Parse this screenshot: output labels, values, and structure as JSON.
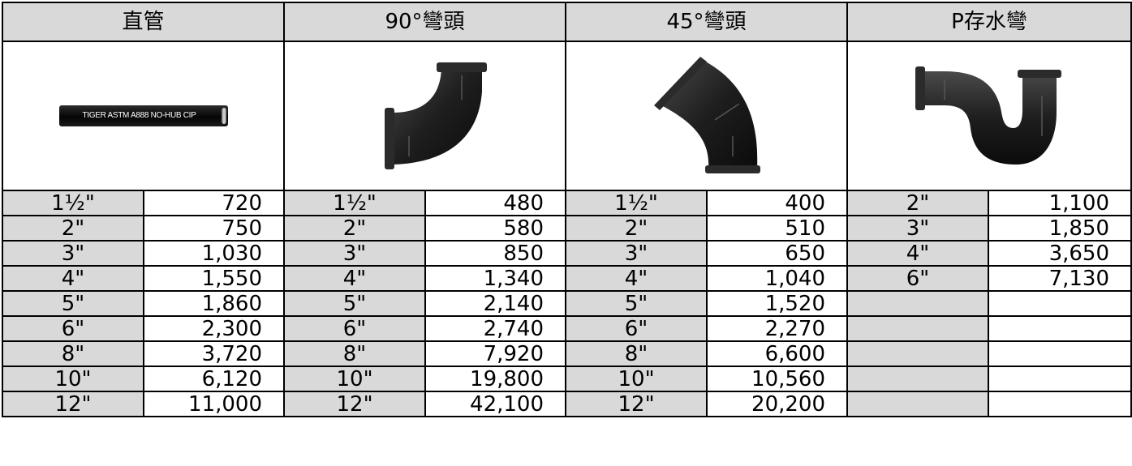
{
  "headers": [
    "直管",
    "90°彎頭",
    "45°彎頭",
    "P存水彎"
  ],
  "images": {
    "straight_pipe_text": "TIGER ASTM A888 NO-HUB CIP",
    "icons": [
      "straight-pipe-icon",
      "elbow-90-icon",
      "elbow-45-icon",
      "p-trap-icon"
    ]
  },
  "rows": [
    [
      "1½\"",
      "720",
      "1½\"",
      "480",
      "1½\"",
      "400",
      "2\"",
      "1,100"
    ],
    [
      "2\"",
      "750",
      "2\"",
      "580",
      "2\"",
      "510",
      "3\"",
      "1,850"
    ],
    [
      "3\"",
      "1,030",
      "3\"",
      "850",
      "3\"",
      "650",
      "4\"",
      "3,650"
    ],
    [
      "4\"",
      "1,550",
      "4\"",
      "1,340",
      "4\"",
      "1,040",
      "6\"",
      "7,130"
    ],
    [
      "5\"",
      "1,860",
      "5\"",
      "2,140",
      "5\"",
      "1,520",
      "",
      ""
    ],
    [
      "6\"",
      "2,300",
      "6\"",
      "2,740",
      "6\"",
      "2,270",
      "",
      ""
    ],
    [
      "8\"",
      "3,720",
      "8\"",
      "7,920",
      "8\"",
      "6,600",
      "",
      ""
    ],
    [
      "10\"",
      "6,120",
      "10\"",
      "19,800",
      "10\"",
      "10,560",
      "",
      ""
    ],
    [
      "12\"",
      "11,000",
      "12\"",
      "42,100",
      "12\"",
      "20,200",
      "",
      ""
    ]
  ]
}
